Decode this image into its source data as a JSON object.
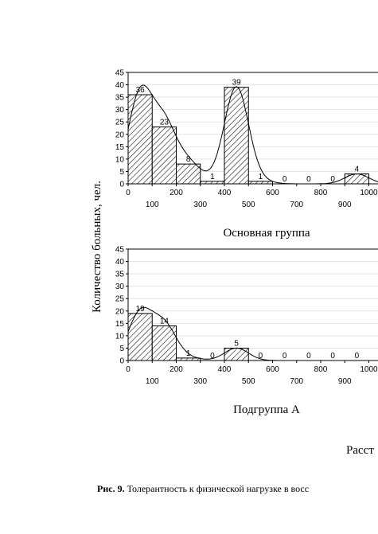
{
  "ylabel": "Количество больных, чел.",
  "xlabel_partial": "Расст",
  "caption": {
    "prefix": "Рис. 9.",
    "text": " Толерантность к физической нагрузке в восс"
  },
  "chart_data": [
    {
      "type": "bar",
      "title": "Основная группа",
      "ylim": [
        0,
        45
      ],
      "yticks": [
        "0",
        "5",
        "10",
        "15",
        "20",
        "25",
        "30",
        "35",
        "40",
        "45"
      ],
      "xticks_upper": [
        "0",
        "200",
        "400",
        "600",
        "800",
        "1000"
      ],
      "xticks_lower": [
        "100",
        "300",
        "500",
        "700",
        "900"
      ],
      "bins": [
        [
          0,
          100
        ],
        [
          100,
          200
        ],
        [
          200,
          300
        ],
        [
          300,
          400
        ],
        [
          400,
          500
        ],
        [
          500,
          600
        ],
        [
          600,
          700
        ],
        [
          700,
          800
        ],
        [
          800,
          900
        ],
        [
          900,
          1000
        ]
      ],
      "values": [
        36,
        23,
        8,
        1,
        39,
        1,
        0,
        0,
        0,
        4
      ],
      "labels": [
        "36",
        "23",
        "8",
        "1",
        "39",
        "1",
        "0",
        "0",
        "0",
        "4"
      ],
      "grid": true
    },
    {
      "type": "bar",
      "title": "Подгруппа А",
      "ylim": [
        0,
        45
      ],
      "yticks": [
        "0",
        "5",
        "10",
        "15",
        "20",
        "25",
        "30",
        "35",
        "40",
        "45"
      ],
      "xticks_upper": [
        "0",
        "200",
        "400",
        "600",
        "800",
        "1000"
      ],
      "xticks_lower": [
        "100",
        "300",
        "500",
        "700",
        "900"
      ],
      "bins": [
        [
          0,
          100
        ],
        [
          100,
          200
        ],
        [
          200,
          300
        ],
        [
          300,
          400
        ],
        [
          400,
          500
        ],
        [
          500,
          600
        ],
        [
          600,
          700
        ],
        [
          700,
          800
        ],
        [
          800,
          900
        ],
        [
          900,
          1000
        ]
      ],
      "values": [
        19,
        14,
        1,
        0,
        5,
        0,
        0,
        0,
        0,
        0
      ],
      "labels": [
        "19",
        "14",
        "1",
        "0",
        "5",
        "0",
        "0",
        "0",
        "0",
        "0"
      ],
      "grid": true
    }
  ]
}
